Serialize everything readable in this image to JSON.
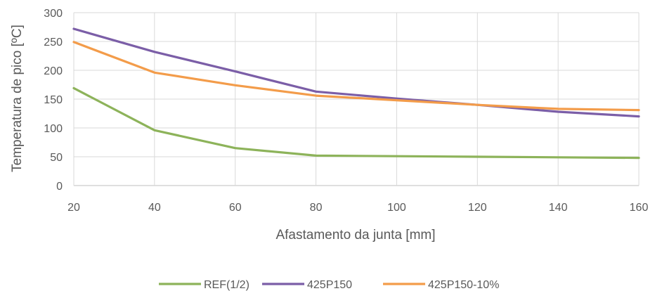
{
  "chart_data": {
    "type": "line",
    "title": "",
    "xlabel": "Afastamento da junta [mm]",
    "ylabel": "Temperatura de pico [ºC]",
    "x": [
      20,
      40,
      60,
      80,
      100,
      120,
      140,
      160
    ],
    "xlim": [
      20,
      160
    ],
    "ylim": [
      0,
      300
    ],
    "x_ticks": [
      20,
      40,
      60,
      80,
      100,
      120,
      140,
      160
    ],
    "y_ticks": [
      0,
      50,
      100,
      150,
      200,
      250,
      300
    ],
    "grid": true,
    "legend_position": "bottom",
    "series": [
      {
        "name": "REF(1/2)",
        "color": "#8db35a",
        "values": [
          169,
          96,
          65,
          52,
          51,
          50,
          49,
          48
        ]
      },
      {
        "name": "425P150",
        "color": "#7b5ea7",
        "values": [
          272,
          232,
          198,
          163,
          151,
          140,
          128,
          120
        ]
      },
      {
        "name": "425P150-10%",
        "color": "#f39c4a",
        "values": [
          249,
          196,
          174,
          156,
          148,
          140,
          133,
          131
        ]
      }
    ]
  }
}
